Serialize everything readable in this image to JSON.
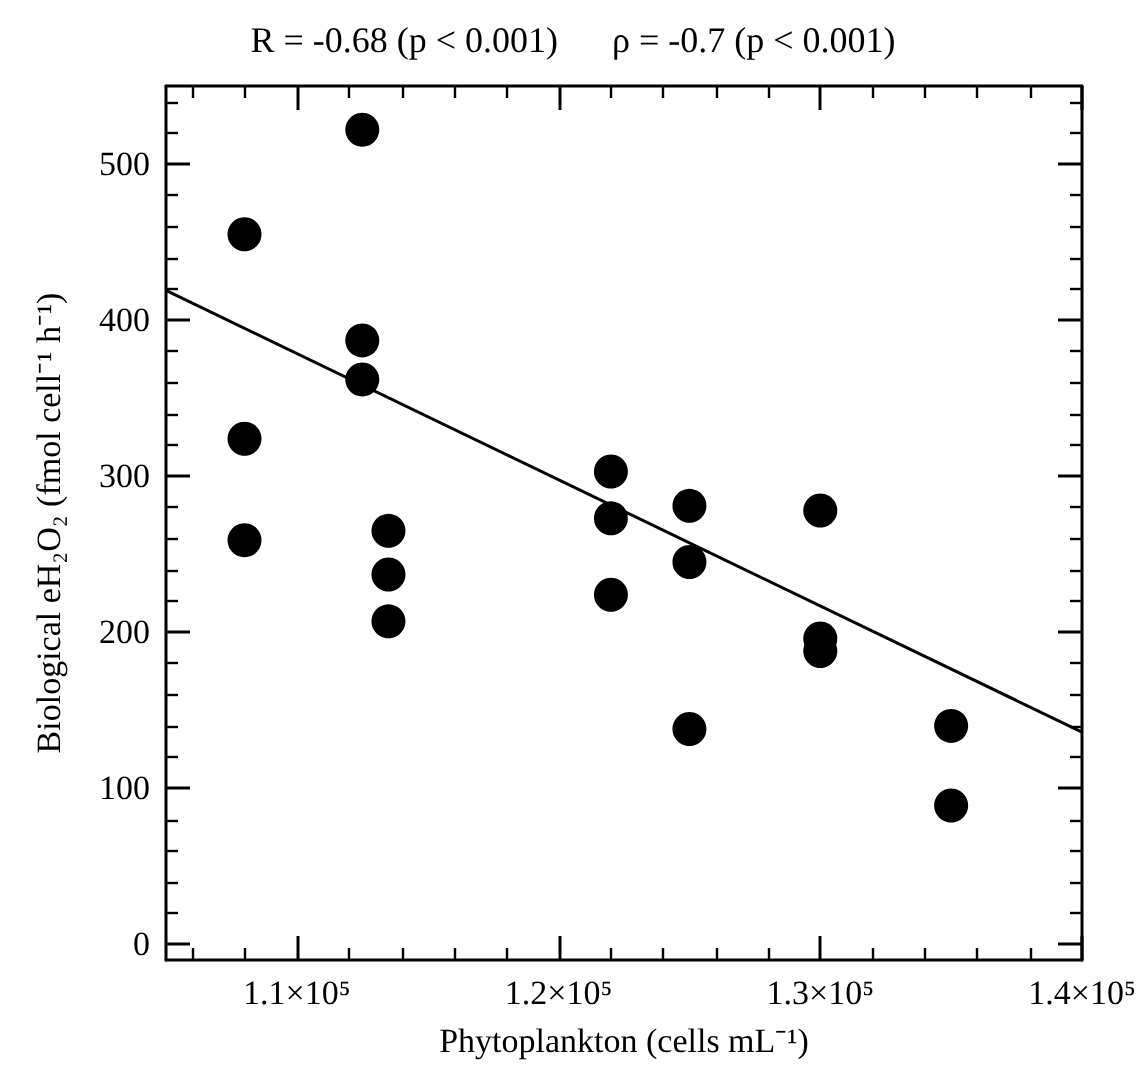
{
  "chart_data": {
    "type": "scatter",
    "title": "R = -0.68 (p < 0.001)      ρ = -0.7 (p < 0.001)",
    "xlabel": "Phytoplankton (cells mL⁻¹)",
    "ylabel": "Biological eH₂O₂ (fmol cell⁻¹ h⁻¹)",
    "xlim": [
      105000,
      140000
    ],
    "ylim": [
      -10,
      550
    ],
    "xticks": [
      {
        "value": 110000,
        "label": "1.1×10⁵"
      },
      {
        "value": 120000,
        "label": "1.2×10⁵"
      },
      {
        "value": 130000,
        "label": "1.3×10⁵"
      },
      {
        "value": 140000,
        "label": "1.4×10⁵"
      }
    ],
    "yticks": [
      0,
      100,
      200,
      300,
      400,
      500
    ],
    "grid": false,
    "marker": "circle",
    "series": [
      {
        "color": "#000000",
        "x": [
          108000,
          108000,
          108000,
          112500,
          112500,
          112500,
          113500,
          113500,
          113500,
          122000,
          122000,
          122000,
          125000,
          125000,
          125000,
          130000,
          130000,
          130000,
          135000,
          135000
        ],
        "values": [
          455,
          324,
          259,
          522,
          387,
          362,
          265,
          237,
          207,
          303,
          273,
          224,
          281,
          245,
          138,
          278,
          196,
          188,
          140,
          89
        ]
      },
      {
        "type": "line",
        "color": "#000000",
        "marker": "none",
        "line_style": "solid",
        "x": [
          105000,
          140000
        ],
        "values": [
          419,
          136
        ]
      }
    ]
  }
}
